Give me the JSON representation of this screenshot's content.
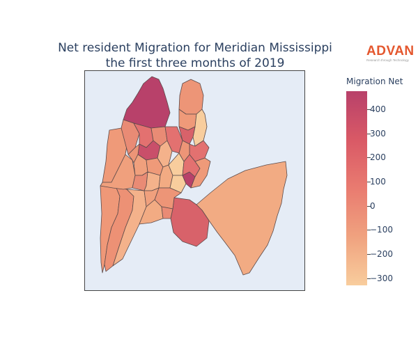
{
  "title": {
    "line1": "Net resident Migration for Meridian Mississippi",
    "line2": "the first three months of 2019"
  },
  "logo": {
    "name": "ADVAN",
    "tagline": "Research through Technology"
  },
  "colorbar": {
    "title": "Migration Net",
    "ticks": [
      {
        "label": "400",
        "value": 400
      },
      {
        "label": "300",
        "value": 300
      },
      {
        "label": "200",
        "value": 200
      },
      {
        "label": "100",
        "value": 100
      },
      {
        "label": "0",
        "value": 0
      },
      {
        "label": "−100",
        "value": -100
      },
      {
        "label": "−200",
        "value": -200
      },
      {
        "label": "−300",
        "value": -300
      }
    ],
    "range": [
      -330,
      475
    ],
    "colorscale": [
      "#f8cd9d",
      "#f0a27f",
      "#e97b70",
      "#d95966",
      "#b8416a"
    ]
  },
  "map": {
    "background": "#e5ecf6",
    "border_color": "#444444"
  }
}
